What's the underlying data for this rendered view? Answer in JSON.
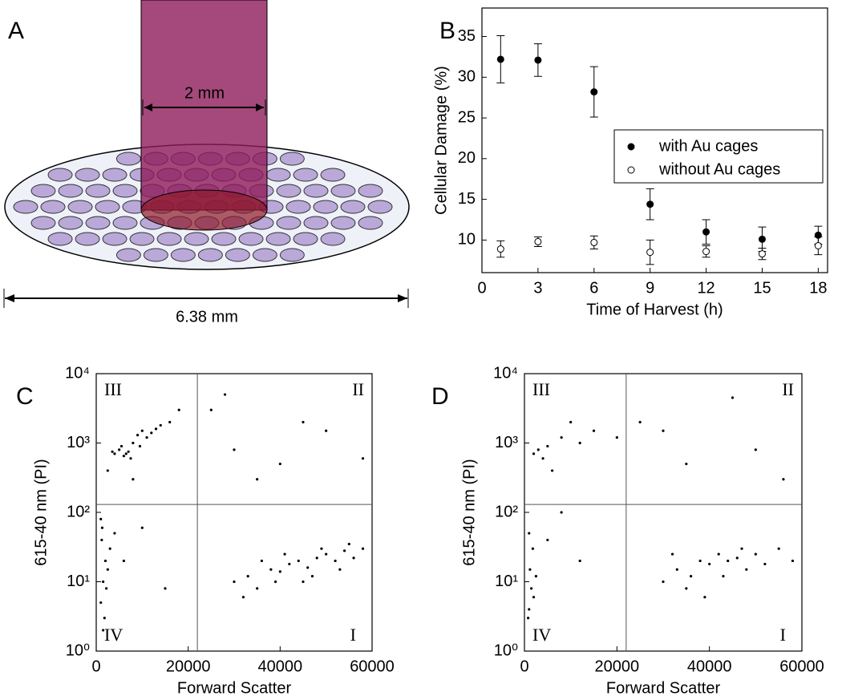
{
  "diagram": {
    "panel": "A",
    "beam_width": "2 mm",
    "dish_width": "6.38 mm"
  },
  "chart_data": [
    {
      "type": "errorbar",
      "panel": "B",
      "xlabel": "Time of Harvest (h)",
      "ylabel": "Cellular Damage (%)",
      "x": [
        1,
        3,
        6,
        9,
        12,
        15,
        18
      ],
      "xlim": [
        0,
        18.5
      ],
      "xticks": [
        0,
        3,
        6,
        9,
        12,
        15,
        18
      ],
      "ylim": [
        6,
        38.5
      ],
      "yticks": [
        10,
        15,
        20,
        25,
        30,
        35
      ],
      "series": [
        {
          "name": "with Au cages",
          "color": "#000000",
          "marker_fill": "#000000",
          "values": [
            32.2,
            32.1,
            28.2,
            14.4,
            11.0,
            10.1,
            10.6
          ],
          "errors": [
            2.9,
            2.0,
            3.1,
            1.9,
            1.5,
            1.5,
            1.1
          ]
        },
        {
          "name": "without Au cages",
          "color": "#000000",
          "marker_fill": "#ffffff",
          "values": [
            8.9,
            9.8,
            9.7,
            8.5,
            8.6,
            8.3,
            9.3
          ],
          "errors": [
            1.0,
            0.6,
            0.8,
            1.5,
            0.7,
            0.7,
            1.1
          ]
        }
      ],
      "legend": "right"
    },
    {
      "type": "scatter",
      "panel": "C",
      "xlabel": "Forward Scatter",
      "ylabel": "615-40 nm (PI)",
      "log_y": true,
      "color": "#000000",
      "xlim": [
        0,
        60000
      ],
      "xticks": [
        0,
        20000,
        40000,
        60000
      ],
      "ylim": [
        1,
        10000
      ],
      "yticks": [
        {
          "value": 1,
          "label": "10⁰"
        },
        {
          "value": 10,
          "label": "10¹"
        },
        {
          "value": 100,
          "label": "10²"
        },
        {
          "value": 1000,
          "label": "10³"
        },
        {
          "value": 10000,
          "label": "10⁴"
        }
      ],
      "gates": {
        "x": 22000,
        "y": 130
      },
      "quadrants": {
        "I": "I",
        "II": "II",
        "III": "III",
        "IV": "IV"
      },
      "x": [
        4000,
        5000,
        6000,
        7000,
        8000,
        9000,
        10000,
        11000,
        12000,
        13000,
        5500,
        6500,
        7500,
        3500,
        9500,
        14000,
        16000,
        2500,
        18000,
        8000,
        1000,
        1500,
        2000,
        1200,
        1800,
        2500,
        1000,
        3000,
        1500,
        2200,
        1300,
        4000,
        6000,
        10000,
        15000,
        30000,
        33000,
        35000,
        38000,
        40000,
        42000,
        44000,
        46000,
        48000,
        50000,
        52000,
        54000,
        56000,
        58000,
        36000,
        45000,
        49000,
        32000,
        41000,
        53000,
        47000,
        55000,
        39000,
        25000,
        30000,
        40000,
        50000,
        35000,
        45000,
        58000,
        28000
      ],
      "values": [
        700,
        800,
        650,
        750,
        1000,
        1300,
        1500,
        1200,
        1400,
        1600,
        900,
        700,
        600,
        750,
        900,
        1800,
        2000,
        400,
        3000,
        300,
        5,
        10,
        20,
        40,
        3,
        15,
        80,
        30,
        2,
        8,
        60,
        50,
        20,
        60,
        8,
        10,
        12,
        8,
        15,
        14,
        18,
        20,
        16,
        22,
        25,
        20,
        28,
        22,
        30,
        20,
        10,
        30,
        6,
        25,
        15,
        12,
        35,
        10,
        3000,
        800,
        500,
        1500,
        300,
        2000,
        600,
        5000
      ]
    },
    {
      "type": "scatter",
      "panel": "D",
      "xlabel": "Forward Scatter",
      "ylabel": "615-40 nm (PI)",
      "log_y": true,
      "color": "#000000",
      "xlim": [
        0,
        60000
      ],
      "xticks": [
        0,
        20000,
        40000,
        60000
      ],
      "ylim": [
        1,
        10000
      ],
      "yticks": [
        {
          "value": 1,
          "label": "10⁰"
        },
        {
          "value": 10,
          "label": "10¹"
        },
        {
          "value": 100,
          "label": "10²"
        },
        {
          "value": 1000,
          "label": "10³"
        },
        {
          "value": 10000,
          "label": "10⁴"
        }
      ],
      "gates": {
        "x": 22000,
        "y": 130
      },
      "quadrants": {
        "I": "I",
        "II": "II",
        "III": "III",
        "IV": "IV"
      },
      "x": [
        2000,
        3000,
        4000,
        5000,
        8000,
        12000,
        15000,
        20000,
        6000,
        10000,
        1000,
        1500,
        1200,
        2000,
        800,
        1800,
        2500,
        1000,
        5000,
        12000,
        8000,
        30000,
        33000,
        36000,
        38000,
        40000,
        42000,
        44000,
        46000,
        48000,
        50000,
        52000,
        55000,
        35000,
        43000,
        47000,
        39000,
        58000,
        32000,
        25000,
        35000,
        45000,
        50000,
        56000,
        30000
      ],
      "values": [
        700,
        800,
        600,
        900,
        1200,
        1000,
        1500,
        1200,
        400,
        2000,
        4,
        8,
        15,
        6,
        3,
        30,
        12,
        50,
        40,
        20,
        100,
        10,
        15,
        12,
        20,
        18,
        25,
        20,
        22,
        15,
        25,
        18,
        30,
        8,
        12,
        30,
        6,
        20,
        25,
        2000,
        500,
        4500,
        800,
        300,
        1500
      ]
    }
  ]
}
